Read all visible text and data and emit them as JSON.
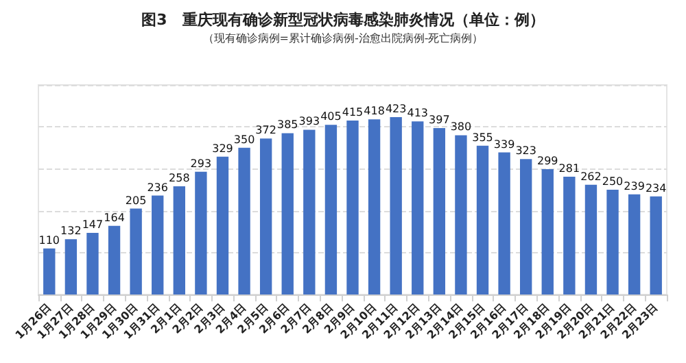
{
  "chart_data": {
    "type": "bar",
    "title": "图3　重庆现有确诊新型冠状病毒感染肺炎情况（单位：例）",
    "subtitle": "（现有确诊病例=累计确诊病例-治愈出院病例-死亡病例）",
    "categories": [
      "1月26日",
      "1月27日",
      "1月28日",
      "1月29日",
      "1月30日",
      "1月31日",
      "2月1日",
      "2月2日",
      "2月3日",
      "2月4日",
      "2月5日",
      "2月6日",
      "2月7日",
      "2月8日",
      "2月9日",
      "2月10日",
      "2月11日",
      "2月12日",
      "2月13日",
      "2月14日",
      "2月15日",
      "2月16日",
      "2月17日",
      "2月18日",
      "2月19日",
      "2月20日",
      "2月21日",
      "2月22日",
      "2月23日"
    ],
    "values": [
      110,
      132,
      147,
      164,
      205,
      236,
      258,
      293,
      329,
      350,
      372,
      385,
      393,
      405,
      415,
      418,
      423,
      413,
      397,
      380,
      355,
      339,
      323,
      299,
      281,
      262,
      250,
      239,
      234
    ],
    "color": "#4472c4",
    "data_labels": true,
    "ylim": [
      0,
      500
    ],
    "yticks": [
      {
        "value": 0,
        "label": null
      },
      {
        "value": 100,
        "label": null
      },
      {
        "value": 200,
        "label": null
      },
      {
        "value": 300,
        "label": null
      },
      {
        "value": 400,
        "label": null
      },
      {
        "value": 500,
        "label": null
      }
    ],
    "tick_labels": "x",
    "grid": "y"
  }
}
